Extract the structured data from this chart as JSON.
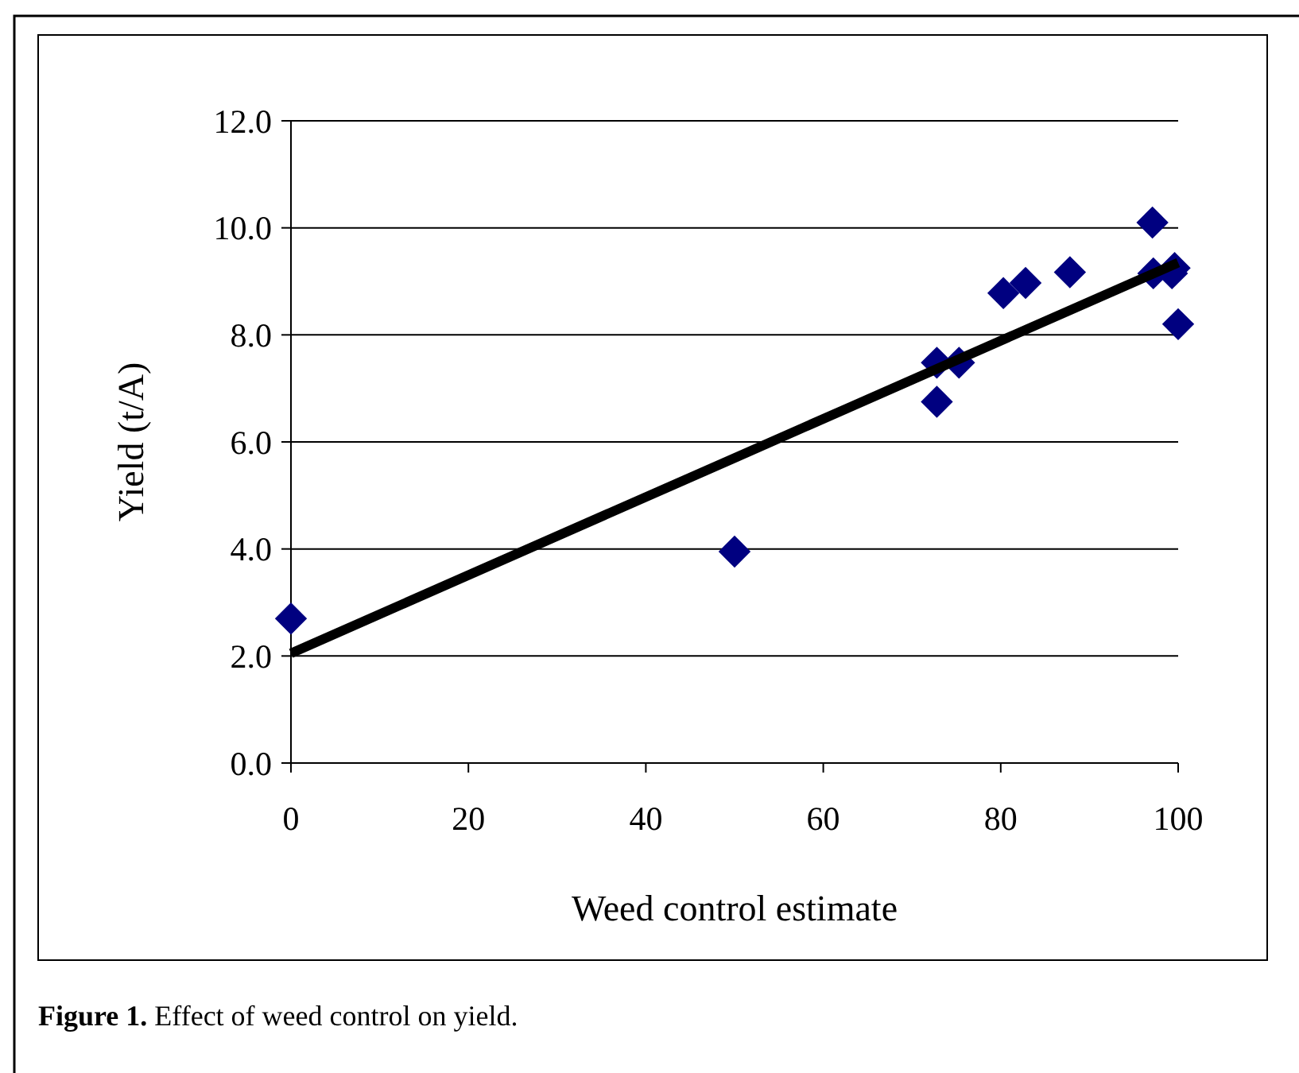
{
  "chart_data": {
    "type": "scatter",
    "xlabel": "Weed control estimate",
    "ylabel": "Yield (t/A)",
    "annotations": [
      "Figure 1. Effect of weed control on yield."
    ],
    "xlim": [
      0,
      100
    ],
    "xticks": [
      0,
      20,
      40,
      60,
      80,
      100
    ],
    "ylim": [
      0,
      12
    ],
    "yticks": [
      {
        "value": 0,
        "label": "0.0"
      },
      {
        "value": 2,
        "label": "2.0"
      },
      {
        "value": 4,
        "label": "4.0"
      },
      {
        "value": 6,
        "label": "6.0"
      },
      {
        "value": 8,
        "label": "8.0"
      },
      {
        "value": 10,
        "label": "10.0"
      },
      {
        "value": 12,
        "label": "12.0"
      }
    ],
    "grid": "y",
    "series": [
      {
        "color": "#000080",
        "marker": "diamond",
        "x": [
          0,
          50,
          72.8,
          72.8,
          75.3,
          80.3,
          82.8,
          87.8,
          97.1,
          97.2,
          99.6,
          99.3,
          100
        ],
        "values": [
          2.7,
          3.95,
          7.48,
          6.75,
          7.48,
          8.78,
          8.97,
          9.17,
          10.1,
          9.15,
          9.25,
          9.15,
          8.2
        ]
      },
      {
        "type": "line",
        "color": "#000000",
        "marker": "none",
        "line_style": "solid",
        "x": [
          0,
          50,
          100
        ],
        "values": [
          2.05,
          5.7,
          9.35
        ]
      }
    ]
  }
}
